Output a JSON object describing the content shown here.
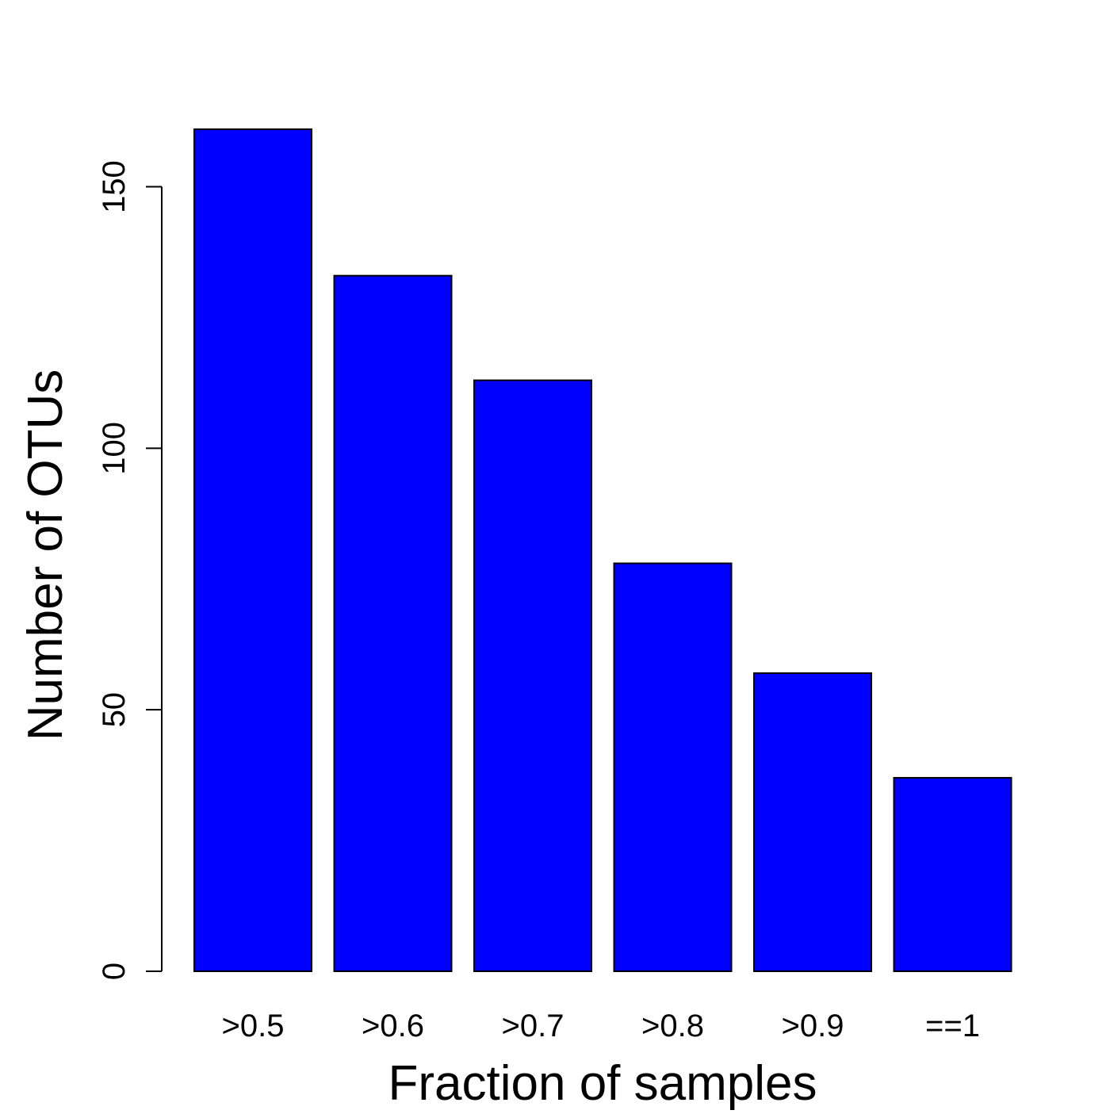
{
  "chart_data": {
    "type": "bar",
    "categories": [
      ">0.5",
      ">0.6",
      ">0.7",
      ">0.8",
      ">0.9",
      "==1"
    ],
    "values": [
      161,
      133,
      113,
      78,
      57,
      37
    ],
    "title": "",
    "xlabel": "Fraction of samples",
    "ylabel": "Number of OTUs",
    "ylim": [
      0,
      161
    ],
    "yticks": [
      0,
      50,
      100,
      150
    ],
    "grid": false,
    "bar_color": "#0000ff",
    "bar_border_color": "#000000"
  }
}
